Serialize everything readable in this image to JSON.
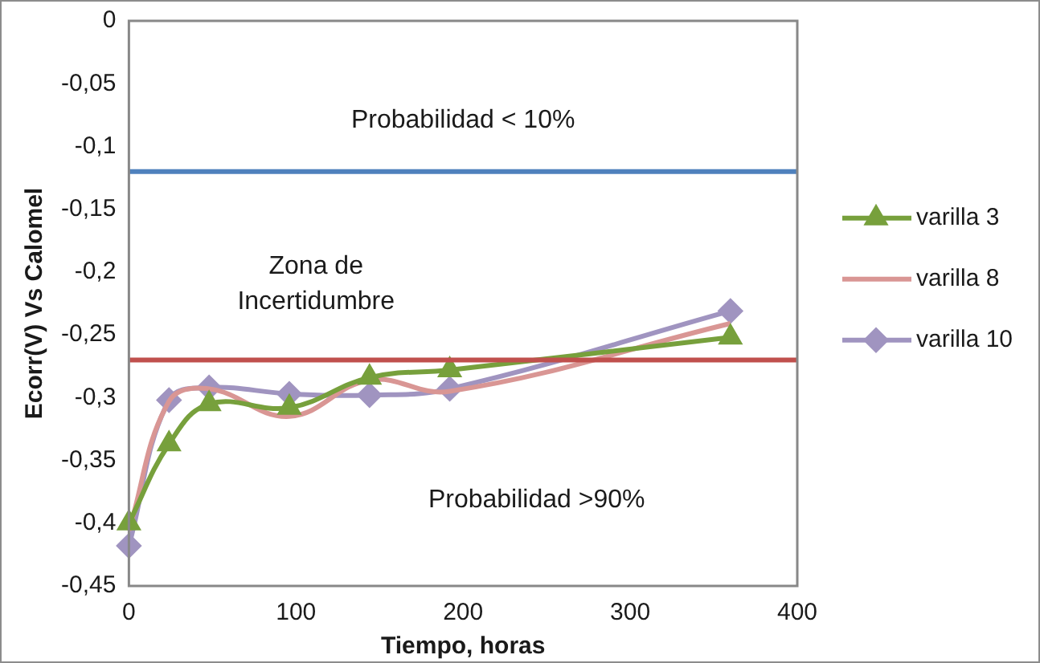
{
  "chart_data": {
    "type": "line",
    "xlabel": "Tiempo, horas",
    "ylabel": "Ecorr(V) Vs Calomel",
    "x": [
      0,
      24,
      48,
      96,
      144,
      192,
      360
    ],
    "series": [
      {
        "name": "varilla 3",
        "color": "#77a03c",
        "marker": "triangle",
        "values": [
          -0.4,
          -0.337,
          -0.305,
          -0.308,
          -0.284,
          -0.278,
          -0.252
        ]
      },
      {
        "name": "varilla 8",
        "color": "#d99694",
        "marker": "none",
        "values": [
          -0.406,
          -0.303,
          -0.293,
          -0.315,
          -0.286,
          -0.295,
          -0.241
        ]
      },
      {
        "name": "varilla 10",
        "color": "#a094c0",
        "marker": "diamond",
        "values": [
          -0.418,
          -0.302,
          -0.292,
          -0.297,
          -0.298,
          -0.293,
          -0.231
        ]
      }
    ],
    "xlim": [
      0,
      400
    ],
    "xticks": [
      0,
      100,
      200,
      300,
      400
    ],
    "ylim": [
      -0.45,
      0
    ],
    "yticks": [
      0,
      {
        "value": -0.05,
        "label": "-0,05"
      },
      {
        "value": -0.1,
        "label": "-0,1"
      },
      {
        "value": -0.15,
        "label": "-0,15"
      },
      {
        "value": -0.2,
        "label": "-0,2"
      },
      {
        "value": -0.25,
        "label": "-0,25"
      },
      {
        "value": -0.3,
        "label": "-0,3"
      },
      {
        "value": -0.35,
        "label": "-0,35"
      },
      {
        "value": -0.4,
        "label": "-0,4"
      },
      {
        "value": -0.45,
        "label": "-0,45"
      }
    ],
    "ref_lines": [
      {
        "axis": "y",
        "value": -0.12,
        "color": "#4f81bd"
      },
      {
        "axis": "y",
        "value": -0.27,
        "color": "#c0504d"
      }
    ],
    "annotations": [
      "Probabilidad < 10%",
      "Zona de Incertidumbre",
      "Probabilidad >90%"
    ],
    "grid": false,
    "legend": "right"
  }
}
